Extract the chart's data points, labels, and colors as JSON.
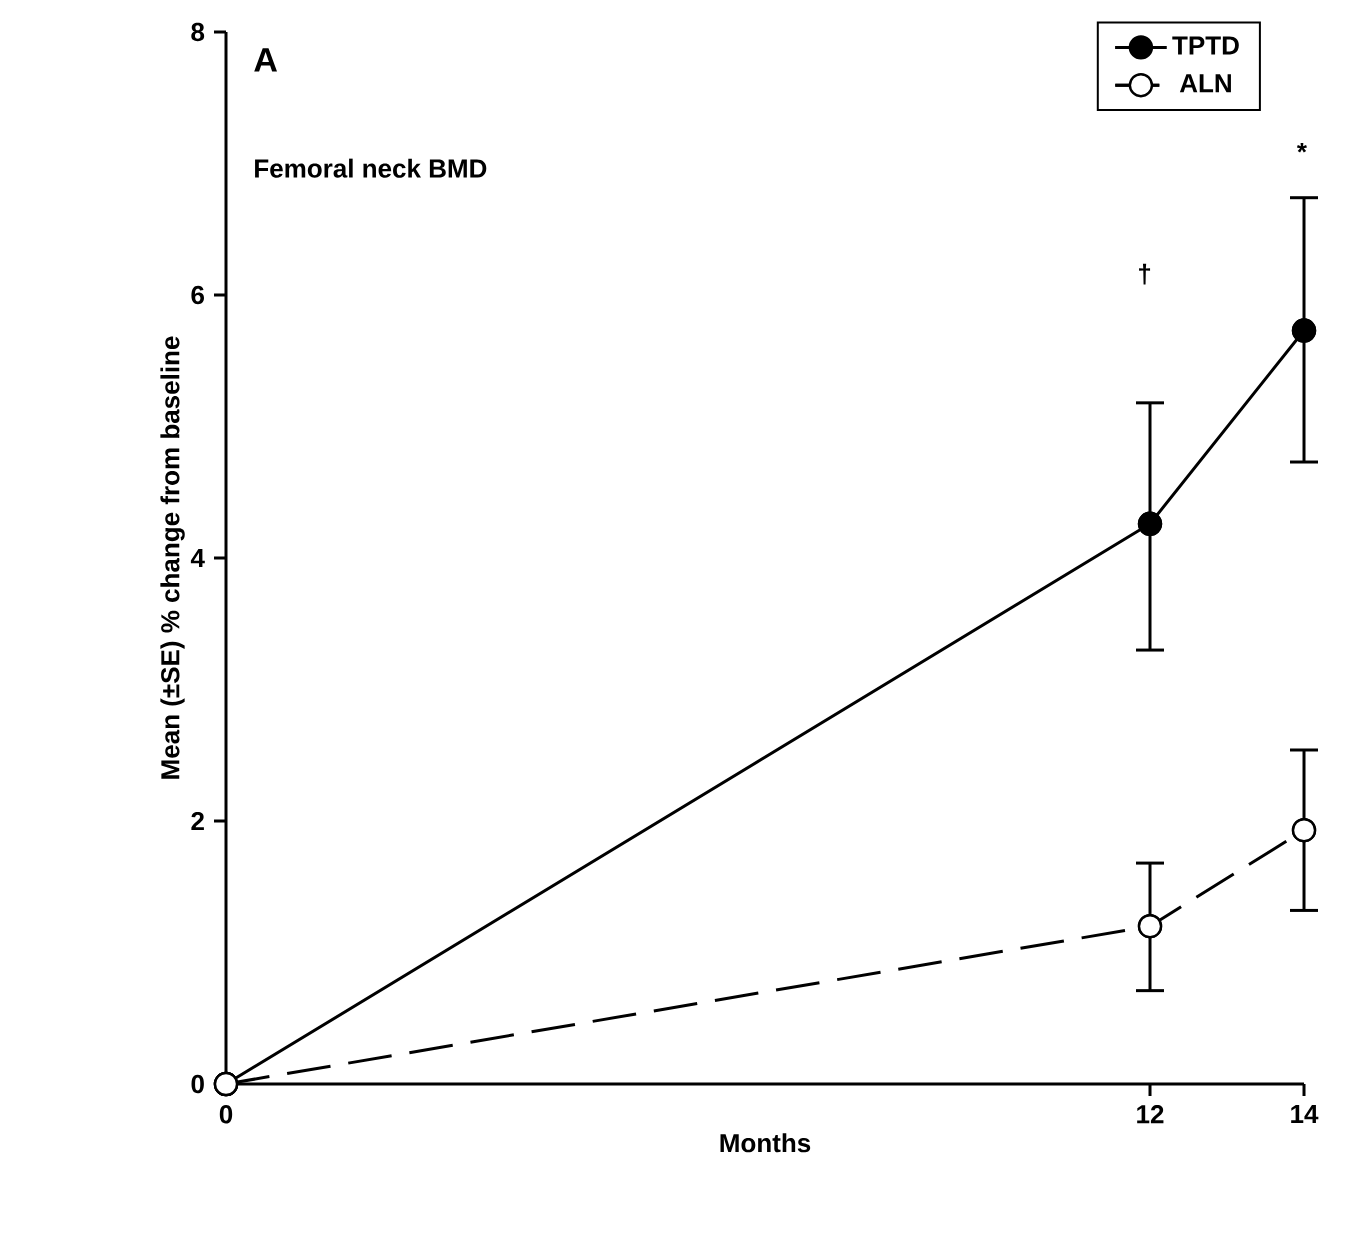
{
  "chart_data": {
    "type": "line",
    "xlabel": "Months",
    "ylabel": "Mean (±SE) % change from baseline",
    "annotations": [
      "A",
      "Femoral neck BMD",
      "†",
      "*"
    ],
    "x": [
      0,
      12,
      14
    ],
    "series": [
      {
        "name": "TPTD",
        "color": "#000000",
        "line_style": "solid",
        "values": [
          0,
          4.26,
          5.73
        ],
        "errors": [
          null,
          [
            3.3,
            5.18
          ],
          [
            4.73,
            6.74
          ]
        ]
      },
      {
        "name": "ALN",
        "color": "#000000",
        "line_style": "dashed",
        "values": [
          0,
          1.2,
          1.93
        ],
        "errors": [
          null,
          [
            0.71,
            1.68
          ],
          [
            1.32,
            2.54
          ]
        ]
      }
    ],
    "xlim": [
      0,
      14
    ],
    "ylim": [
      0,
      8
    ],
    "xticks": [
      0,
      12,
      14
    ],
    "yticks": [
      0,
      2,
      4,
      6,
      8
    ],
    "grid": false,
    "legend": "top right",
    "marker": "circle"
  }
}
